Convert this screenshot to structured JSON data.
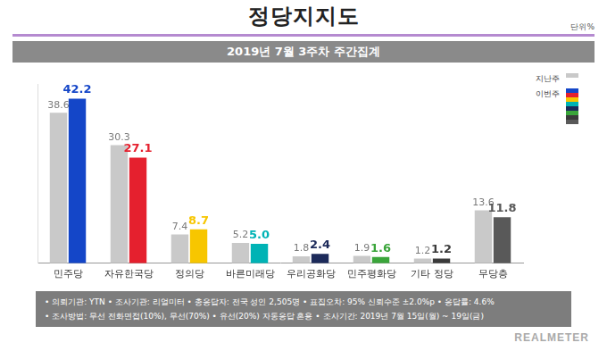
{
  "chart_data": {
    "type": "bar",
    "title": "정당지지도",
    "subtitle": "2019년 7월 3주차 주간집계",
    "annotations": {
      "unit": "단위%",
      "notes": [
        "• 의뢰기관: YTN  • 조사기관: 리얼미터  • 총응답자: 전국 성인 2,505명  • 표집오차: 95% 신뢰수준 ±2.0%p  • 응답률: 4.6%",
        "• 조사방법: 무선 전화면접(10%), 무선(70%) • 유선(20%) 자동응답 혼용  • 조사기간: 2019년 7월 15일(월) ~ 19일(금)"
      ],
      "brand": "REALMETER"
    },
    "categories": [
      "민주당",
      "자유한국당",
      "정의당",
      "바른미래당",
      "우리공화당",
      "민주평화당",
      "기타 정당",
      "무당층"
    ],
    "series": [
      {
        "name": "지난주",
        "color": "#c9c9c9",
        "values": [
          38.6,
          30.3,
          7.4,
          5.2,
          1.8,
          1.9,
          1.2,
          13.6
        ],
        "value_labels": [
          "38.6",
          "30.3",
          "7.4",
          "5.2",
          "1.8",
          "1.9",
          "1.2",
          "13.6"
        ]
      },
      {
        "name": "이번주",
        "colors": [
          "#1446c8",
          "#e5202e",
          "#f7c600",
          "#00b3b5",
          "#1c2a5a",
          "#3aa53a",
          "#3a3a3a",
          "#595959"
        ],
        "values": [
          42.2,
          27.1,
          8.7,
          5.0,
          2.4,
          1.6,
          1.2,
          11.8
        ],
        "value_labels": [
          "42.2",
          "27.1",
          "8.7",
          "5.0",
          "2.4",
          "1.6",
          "1.2",
          "11.8"
        ]
      }
    ],
    "ylim": [
      0,
      46
    ],
    "grid": false,
    "data_labels": true,
    "tick_labels": "x",
    "legend": "top-right"
  }
}
